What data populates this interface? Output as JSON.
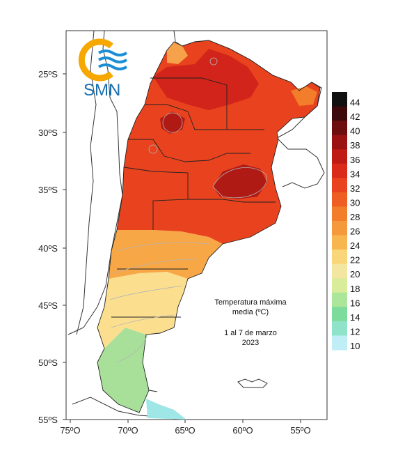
{
  "logo": {
    "text": "SMN",
    "colors": [
      "#f6a800",
      "#1a8fd6"
    ]
  },
  "map": {
    "lat_labels": [
      "25ºS",
      "30ºS",
      "35ºS",
      "40ºS",
      "45ºS",
      "50ºS",
      "55ºS"
    ],
    "lon_labels": [
      "75ºO",
      "70ºO",
      "65ºO",
      "60ºO",
      "55ºO"
    ],
    "annotation": {
      "line1": "Temperatura máxima",
      "line2": "media (ºC)",
      "line3": "1 al 7 de marzo",
      "line4": "2023"
    }
  },
  "colorbar": {
    "ticks": [
      "44",
      "42",
      "40",
      "38",
      "36",
      "34",
      "32",
      "30",
      "28",
      "26",
      "24",
      "22",
      "20",
      "18",
      "16",
      "14",
      "12",
      "10"
    ],
    "colors": [
      "#111111",
      "#3c0a0a",
      "#6e0f0f",
      "#9a1212",
      "#c01a14",
      "#d92a1a",
      "#e8431e",
      "#ee5e22",
      "#f27d2a",
      "#f59a3c",
      "#f8b650",
      "#fad67a",
      "#f2e6a0",
      "#d8ec9a",
      "#ace69a",
      "#7ddc9c",
      "#8fe3c8",
      "#bfeef6"
    ]
  }
}
